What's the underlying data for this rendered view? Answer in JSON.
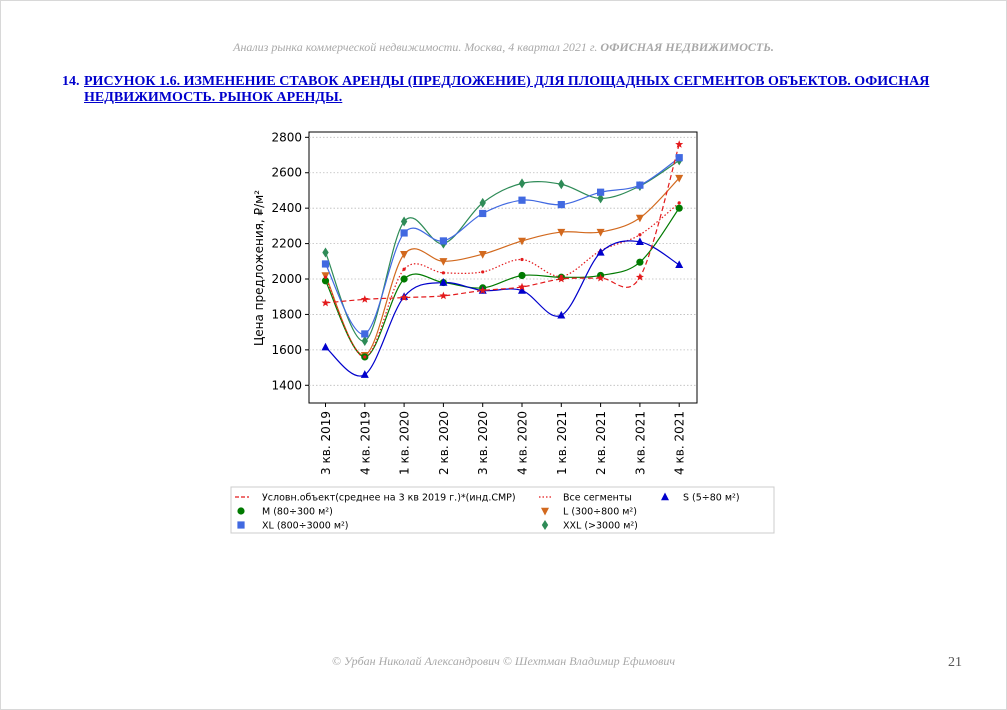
{
  "page": {
    "header": "Анализ рынка коммерческой недвижимости.   Москва,  4 квартал 2021 г.   ",
    "header_bold": "ОФИСНАЯ НЕДВИЖИМОСТЬ.",
    "caption_number": "14.",
    "caption": "РИСУНОК 1.6. ИЗМЕНЕНИЕ СТАВОК АРЕНДЫ (ПРЕДЛОЖЕНИЕ) ДЛЯ ПЛОЩАДНЫХ СЕГМЕНТОВ ОБЪЕКТОВ. ОФИСНАЯ НЕДВИЖИМОСТЬ. РЫНОК АРЕНДЫ.",
    "footer": "© Урбан Николай Александрович   © Шехтман Владимир Ефимович",
    "page_number": "21"
  },
  "chart_data": {
    "type": "line",
    "ylabel": "Цена предложения, ₽/м²",
    "xlabel": "",
    "ylim": [
      1300,
      2830
    ],
    "yticks": [
      1400,
      1600,
      1800,
      2000,
      2200,
      2400,
      2600,
      2800
    ],
    "categories": [
      "3 кв. 2019",
      "4 кв. 2019",
      "1 кв. 2020",
      "2 кв. 2020",
      "3 кв. 2020",
      "4 кв. 2020",
      "1 кв. 2021",
      "2 кв. 2021",
      "3 кв. 2021",
      "4 кв. 2021"
    ],
    "grid": "horizontal dotted",
    "legend_position": "below",
    "series": [
      {
        "name": "Условн.объект(среднее на 3 кв 2019 г.)*(инд.СМР)",
        "color": "#e31a1c",
        "style": "dashed",
        "marker": "star",
        "values": [
          1865,
          1885,
          1895,
          1905,
          1935,
          1955,
          2000,
          2005,
          2010,
          2760
        ]
      },
      {
        "name": "Все сегменты",
        "color": "#e31a1c",
        "style": "dotted",
        "marker": "dot",
        "values": [
          2010,
          1560,
          2055,
          2035,
          2040,
          2110,
          2015,
          2160,
          2250,
          2430
        ]
      },
      {
        "name": "S (5÷80 м²)",
        "color": "#0000cc",
        "style": "solid",
        "marker": "triangle-up",
        "values": [
          1615,
          1460,
          1900,
          1980,
          1935,
          1935,
          1795,
          2150,
          2210,
          2080
        ]
      },
      {
        "name": "M (80÷300 м²)",
        "color": "#007a00",
        "style": "solid",
        "marker": "circle",
        "values": [
          1990,
          1560,
          2000,
          1980,
          1950,
          2020,
          2010,
          2020,
          2095,
          2400
        ]
      },
      {
        "name": "L (300÷800 м²)",
        "color": "#d2691e",
        "style": "solid",
        "marker": "triangle-down",
        "values": [
          2020,
          1570,
          2140,
          2100,
          2140,
          2215,
          2265,
          2265,
          2345,
          2570
        ]
      },
      {
        "name": "XL (800÷3000 м²)",
        "color": "#4169e1",
        "style": "solid",
        "marker": "square",
        "values": [
          2085,
          1690,
          2260,
          2215,
          2370,
          2445,
          2420,
          2490,
          2530,
          2685
        ]
      },
      {
        "name": "XXL (>3000 м²)",
        "color": "#2e8b57",
        "style": "solid",
        "marker": "diamond",
        "values": [
          2150,
          1650,
          2325,
          2200,
          2430,
          2540,
          2535,
          2455,
          2525,
          2670
        ]
      }
    ],
    "legend_order": [
      0,
      3,
      5,
      1,
      4,
      6,
      2
    ]
  }
}
